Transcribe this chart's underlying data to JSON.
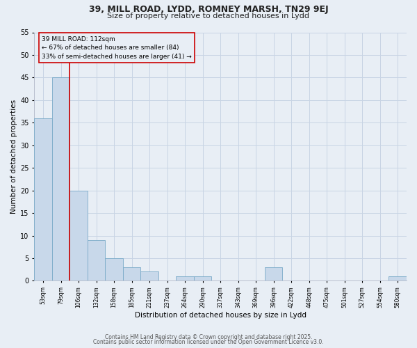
{
  "title1": "39, MILL ROAD, LYDD, ROMNEY MARSH, TN29 9EJ",
  "title2": "Size of property relative to detached houses in Lydd",
  "xlabel": "Distribution of detached houses by size in Lydd",
  "ylabel": "Number of detached properties",
  "bin_labels": [
    "53sqm",
    "79sqm",
    "106sqm",
    "132sqm",
    "158sqm",
    "185sqm",
    "211sqm",
    "237sqm",
    "264sqm",
    "290sqm",
    "317sqm",
    "343sqm",
    "369sqm",
    "396sqm",
    "422sqm",
    "448sqm",
    "475sqm",
    "501sqm",
    "527sqm",
    "554sqm",
    "580sqm"
  ],
  "bar_heights": [
    36,
    45,
    20,
    9,
    5,
    3,
    2,
    0,
    1,
    1,
    0,
    0,
    0,
    3,
    0,
    0,
    0,
    0,
    0,
    0,
    1
  ],
  "bar_color": "#c8d8ea",
  "bar_edgecolor": "#7aaac8",
  "bar_linewidth": 0.6,
  "vline_color": "#cc0000",
  "vline_bin": 2,
  "annotation_text": "39 MILL ROAD: 112sqm\n← 67% of detached houses are smaller (84)\n33% of semi-detached houses are larger (41) →",
  "annotation_box_edgecolor": "#cc0000",
  "ylim": [
    0,
    55
  ],
  "yticks": [
    0,
    5,
    10,
    15,
    20,
    25,
    30,
    35,
    40,
    45,
    50,
    55
  ],
  "grid_color": "#c8d4e4",
  "background_color": "#e8eef5",
  "footer1": "Contains HM Land Registry data © Crown copyright and database right 2025.",
  "footer2": "Contains public sector information licensed under the Open Government Licence v3.0."
}
